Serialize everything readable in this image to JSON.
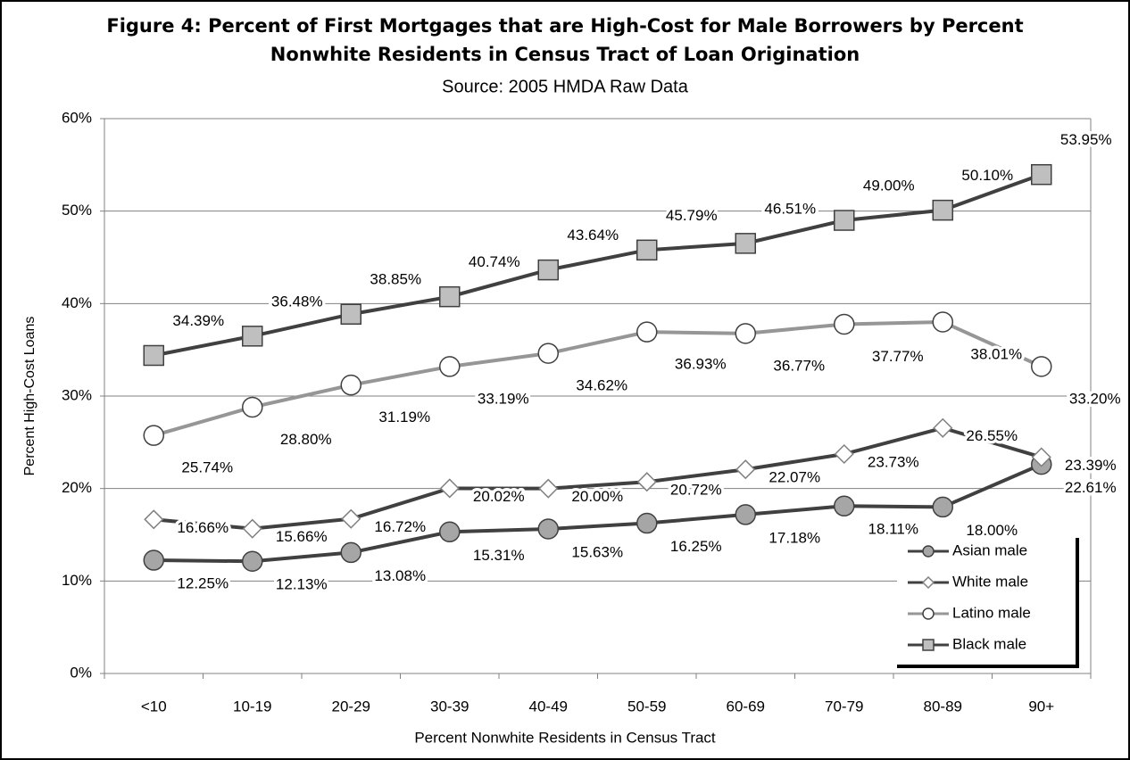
{
  "chart_data": {
    "type": "line",
    "title": "Figure 4: Percent of First Mortgages that are High-Cost for Male Borrowers by Percent Nonwhite Residents in Census Tract of Loan Origination",
    "subtitle": "Source: 2005 HMDA Raw Data",
    "x_label": "Percent Nonwhite Residents in Census Tract",
    "y_label": "Percent High-Cost Loans",
    "categories": [
      "<10",
      "10-19",
      "20-29",
      "30-39",
      "40-49",
      "50-59",
      "60-69",
      "70-79",
      "80-89",
      "90+"
    ],
    "ylim": [
      0,
      60
    ],
    "yticks": [
      {
        "value": 0,
        "label": "0%"
      },
      {
        "value": 10,
        "label": "10%"
      },
      {
        "value": 20,
        "label": "20%"
      },
      {
        "value": 30,
        "label": "30%"
      },
      {
        "value": 40,
        "label": "40%"
      },
      {
        "value": 50,
        "label": "50%"
      },
      {
        "value": 60,
        "label": "60%"
      }
    ],
    "grid": true,
    "legend": "lower right",
    "series": [
      {
        "name": "Asian male",
        "color": "#404040",
        "marker": "circle",
        "marker_color": "#a6a6a6",
        "values": [
          12.25,
          12.13,
          13.08,
          15.31,
          15.63,
          16.25,
          17.18,
          18.11,
          18.0,
          22.61
        ],
        "value_labels": [
          "12.25%",
          "12.13%",
          "13.08%",
          "15.31%",
          "15.63%",
          "16.25%",
          "17.18%",
          "18.11%",
          "18.00%",
          "22.61%"
        ]
      },
      {
        "name": "White male",
        "color": "#404040",
        "marker": "diamond",
        "marker_color": "#ffffff",
        "values": [
          16.66,
          15.66,
          16.72,
          20.02,
          20.0,
          20.72,
          22.07,
          23.73,
          26.55,
          23.39
        ],
        "value_labels": [
          "16.66%",
          "15.66%",
          "16.72%",
          "20.02%",
          "20.00%",
          "20.72%",
          "22.07%",
          "23.73%",
          "26.55%",
          "23.39%"
        ]
      },
      {
        "name": "Latino male",
        "color": "#969696",
        "marker": "circle",
        "marker_color": "#ffffff",
        "values": [
          25.74,
          28.8,
          31.19,
          33.19,
          34.62,
          36.93,
          36.77,
          37.77,
          38.01,
          33.2
        ],
        "value_labels": [
          "25.74%",
          "28.80%",
          "31.19%",
          "33.19%",
          "34.62%",
          "36.93%",
          "36.77%",
          "37.77%",
          "38.01%",
          "33.20%"
        ]
      },
      {
        "name": "Black male",
        "color": "#404040",
        "marker": "square",
        "marker_color": "#bfbfbf",
        "values": [
          34.39,
          36.48,
          38.85,
          40.74,
          43.64,
          45.79,
          46.51,
          49.0,
          50.1,
          53.95
        ],
        "value_labels": [
          "34.39%",
          "36.48%",
          "38.85%",
          "40.74%",
          "43.64%",
          "45.79%",
          "46.51%",
          "49.00%",
          "50.10%",
          "53.95%"
        ]
      }
    ]
  }
}
